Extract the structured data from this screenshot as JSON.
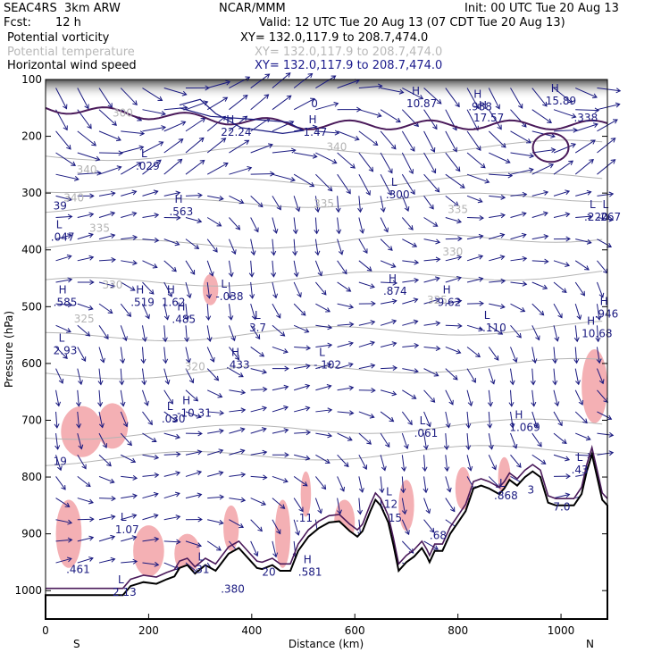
{
  "header": {
    "model": "SEAC4RS  3km ARW",
    "org": "NCAR/MMM",
    "init": "Init: 00 UTC Tue 20 Aug 13",
    "fcst_label": "Fcst:",
    "fcst_value": "12 h",
    "valid": "Valid: 12 UTC Tue 20 Aug 13 (07 CDT Tue 20 Aug 13)"
  },
  "fields": [
    {
      "name": "Potential vorticity",
      "xy": "XY= 132.0,117.9 to 208.7,474.0",
      "color": "#000000",
      "xy_color": "#000000"
    },
    {
      "name": "Potential temperature",
      "xy": "XY= 132.0,117.9 to 208.7,474.0",
      "color": "#b8b8b8",
      "xy_color": "#b8b8b8"
    },
    {
      "name": "Horizontal wind speed",
      "xy": "XY= 132.0,117.9 to 208.7,474.0",
      "color": "#000000",
      "xy_color": "#1a1a8c"
    }
  ],
  "colors": {
    "pv_contour": "#4a1a5a",
    "theta": "#b4b4b4",
    "wind": "#1a1a80",
    "shade": "#f4b0b4",
    "terrain": "#000000",
    "label": "#1a1a80"
  },
  "chart_data": {
    "type": "cross-section",
    "xlabel": "Distance (km)",
    "ylabel": "Pressure (hPa)",
    "xlim": [
      0,
      1090
    ],
    "ylim": [
      1050,
      100
    ],
    "x_ticks": [
      "0",
      "200",
      "400",
      "600",
      "800",
      "1000"
    ],
    "y_ticks": [
      "100",
      "200",
      "300",
      "400",
      "500",
      "600",
      "700",
      "800",
      "900",
      "1000"
    ],
    "end_labels": {
      "left": "S",
      "right": "N"
    },
    "theta_labels": [
      {
        "x": 130,
        "p": 165,
        "text": "300"
      },
      {
        "x": 60,
        "p": 265,
        "text": "340"
      },
      {
        "x": 35,
        "p": 315,
        "text": "340"
      },
      {
        "x": 520,
        "p": 325,
        "text": "335"
      },
      {
        "x": 780,
        "p": 335,
        "text": "335"
      },
      {
        "x": 85,
        "p": 368,
        "text": "335"
      },
      {
        "x": 110,
        "p": 468,
        "text": "330"
      },
      {
        "x": 770,
        "p": 410,
        "text": "330"
      },
      {
        "x": 55,
        "p": 528,
        "text": "325"
      },
      {
        "x": 270,
        "p": 612,
        "text": "320"
      },
      {
        "x": 545,
        "p": 225,
        "text": "340"
      },
      {
        "x": 740,
        "p": 495,
        "text": "325"
      }
    ],
    "extrema": [
      {
        "x": 15,
        "p": 310,
        "kind": "",
        "value": "39"
      },
      {
        "x": 15,
        "p": 760,
        "kind": "",
        "value": "19"
      },
      {
        "x": 10,
        "p": 365,
        "kind": "L",
        "value": ".047"
      },
      {
        "x": 15,
        "p": 480,
        "kind": "H",
        "value": ".585"
      },
      {
        "x": 15,
        "p": 565,
        "kind": "L",
        "value": "2.93"
      },
      {
        "x": 175,
        "p": 240,
        "kind": "L",
        "value": ".029"
      },
      {
        "x": 240,
        "p": 320,
        "kind": "H",
        "value": ".563"
      },
      {
        "x": 165,
        "p": 480,
        "kind": "H",
        "value": ".519"
      },
      {
        "x": 225,
        "p": 480,
        "kind": "H",
        "value": "1.62"
      },
      {
        "x": 245,
        "p": 510,
        "kind": "H",
        "value": ".485"
      },
      {
        "x": 330,
        "p": 470,
        "kind": "L",
        "value": "-.038"
      },
      {
        "x": 395,
        "p": 525,
        "kind": "L",
        "value": "3.7"
      },
      {
        "x": 350,
        "p": 590,
        "kind": "H",
        "value": ".433"
      },
      {
        "x": 520,
        "p": 590,
        "kind": "L",
        "value": "-.102"
      },
      {
        "x": 255,
        "p": 675,
        "kind": "H",
        "value": "-10.31"
      },
      {
        "x": 225,
        "p": 685,
        "kind": "L",
        "value": ".030"
      },
      {
        "x": 660,
        "p": 290,
        "kind": "L",
        "value": ".300"
      },
      {
        "x": 655,
        "p": 460,
        "kind": "H",
        "value": ".874"
      },
      {
        "x": 760,
        "p": 480,
        "kind": "H",
        "value": "9.62"
      },
      {
        "x": 840,
        "p": 525,
        "kind": "L",
        "value": "-.110"
      },
      {
        "x": 1065,
        "p": 500,
        "kind": "H",
        "value": ".946"
      },
      {
        "x": 1040,
        "p": 535,
        "kind": "H",
        "value": "10.68"
      },
      {
        "x": 1070,
        "p": 330,
        "kind": "L",
        "value": ".267"
      },
      {
        "x": 1045,
        "p": 330,
        "kind": "L",
        "value": ".220"
      },
      {
        "x": 900,
        "p": 700,
        "kind": "H",
        "value": "1.069"
      },
      {
        "x": 715,
        "p": 710,
        "kind": "L",
        "value": ".061"
      },
      {
        "x": 700,
        "p": 130,
        "kind": "H",
        "value": "10.87"
      },
      {
        "x": 820,
        "p": 135,
        "kind": "H",
        "value": ".988"
      },
      {
        "x": 830,
        "p": 155,
        "kind": "H",
        "value": "17.57"
      },
      {
        "x": 970,
        "p": 125,
        "kind": "H",
        "value": "15.89"
      },
      {
        "x": 1025,
        "p": 155,
        "kind": "",
        "value": ".338"
      },
      {
        "x": 340,
        "p": 180,
        "kind": "H",
        "value": "22.24"
      },
      {
        "x": 500,
        "p": 180,
        "kind": "H",
        "value": "1.47"
      },
      {
        "x": 515,
        "p": 130,
        "kind": "",
        "value": "0"
      },
      {
        "x": 1020,
        "p": 775,
        "kind": "L",
        "value": ".43"
      },
      {
        "x": 135,
        "p": 880,
        "kind": "L",
        "value": "1.07"
      },
      {
        "x": 40,
        "p": 950,
        "kind": "",
        "value": ".461"
      },
      {
        "x": 130,
        "p": 990,
        "kind": "L",
        "value": "2.13"
      },
      {
        "x": 285,
        "p": 950,
        "kind": "L",
        "value": ".31"
      },
      {
        "x": 340,
        "p": 985,
        "kind": "",
        "value": ".380"
      },
      {
        "x": 420,
        "p": 955,
        "kind": "",
        "value": "20"
      },
      {
        "x": 490,
        "p": 955,
        "kind": "H",
        "value": ".581"
      },
      {
        "x": 485,
        "p": 860,
        "kind": "",
        "value": ".11"
      },
      {
        "x": 650,
        "p": 835,
        "kind": "L",
        "value": ".12"
      },
      {
        "x": 665,
        "p": 860,
        "kind": "",
        "value": "15"
      },
      {
        "x": 745,
        "p": 890,
        "kind": "",
        "value": ".68"
      },
      {
        "x": 870,
        "p": 820,
        "kind": "L",
        "value": ".868"
      },
      {
        "x": 935,
        "p": 810,
        "kind": "",
        "value": "3"
      },
      {
        "x": 985,
        "p": 840,
        "kind": "",
        "value": "7.0"
      }
    ]
  }
}
